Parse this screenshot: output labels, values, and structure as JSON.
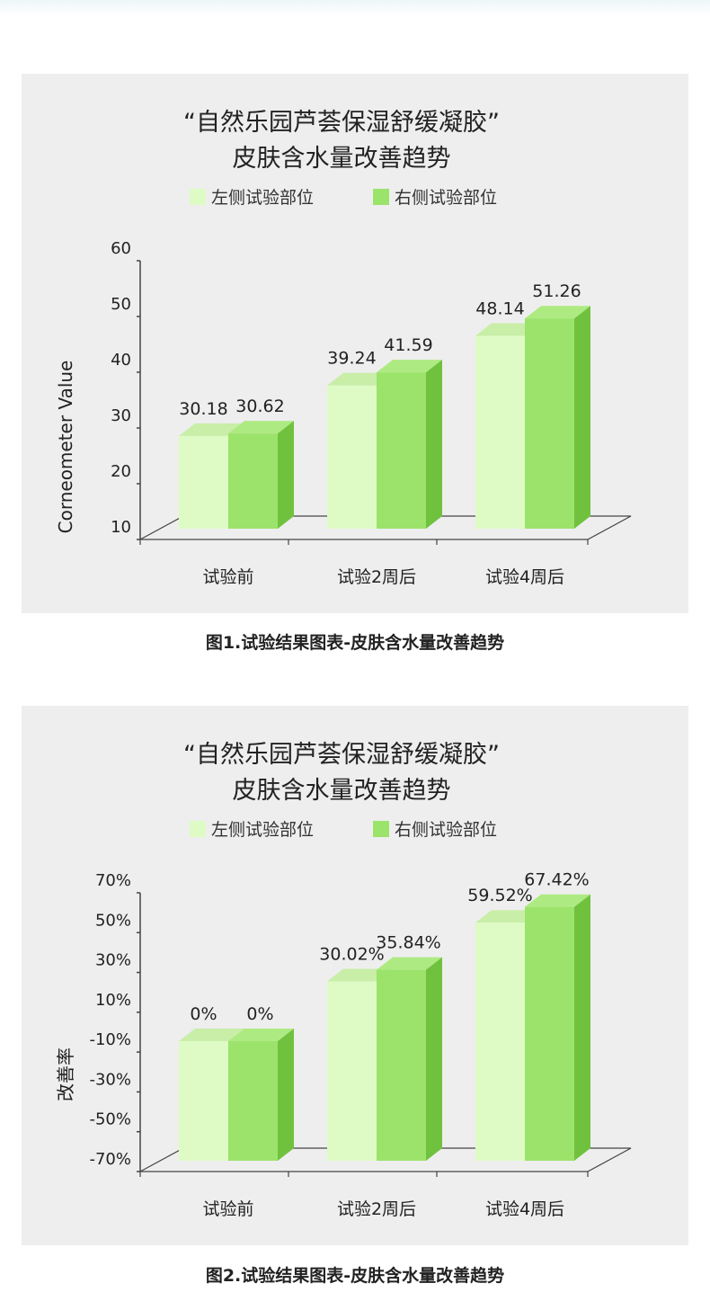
{
  "colors": {
    "left_front": "#defbc6",
    "left_top": "#c8eea8",
    "left_side": "#b8e696",
    "right_front": "#9be36a",
    "right_top": "#aeea82",
    "right_side": "#70c23e",
    "axis": "#444444",
    "panel_bg": "#eeeeee"
  },
  "captions": {
    "chart1": "图1.试验结果图表-皮肤含水量改善趋势",
    "chart2": "图2.试验结果图表-皮肤含水量改善趋势"
  },
  "chart_data": [
    {
      "type": "bar",
      "title": "“自然乐园芦荟保湿舒缓凝胶”",
      "subtitle": "皮肤含水量改善趋势",
      "ylabel": "Corneometer Value",
      "xlabel": "",
      "categories": [
        "试验前",
        "试验2周后",
        "试验4周后"
      ],
      "yticks": [
        "10",
        "20",
        "30",
        "40",
        "50",
        "60"
      ],
      "ylim": [
        10,
        60
      ],
      "series": [
        {
          "name": "左侧试验部位",
          "values": [
            30.18,
            39.24,
            48.14
          ],
          "labels": [
            "30.18",
            "39.24",
            "48.14"
          ]
        },
        {
          "name": "右侧试验部位",
          "values": [
            30.62,
            41.59,
            51.26
          ],
          "labels": [
            "30.62",
            "41.59",
            "51.26"
          ]
        }
      ],
      "legend": "top-center",
      "grid": false,
      "style": "3d"
    },
    {
      "type": "bar",
      "title": "“自然乐园芦荟保湿舒缓凝胶”",
      "subtitle": "皮肤含水量改善趋势",
      "ylabel": "改善率",
      "xlabel": "",
      "categories": [
        "试验前",
        "试验2周后",
        "试验4周后"
      ],
      "yticks": [
        "-70%",
        "-50%",
        "-30%",
        "-10%",
        "10%",
        "30%",
        "50%",
        "70%"
      ],
      "ylim": [
        -70,
        70
      ],
      "series": [
        {
          "name": "左侧试验部位",
          "values": [
            0,
            30.02,
            59.52
          ],
          "labels": [
            "0%",
            "30.02%",
            "59.52%"
          ]
        },
        {
          "name": "右侧试验部位",
          "values": [
            0,
            35.84,
            67.42
          ],
          "labels": [
            "0%",
            "35.84%",
            "67.42%"
          ]
        }
      ],
      "legend": "top-center",
      "grid": false,
      "style": "3d"
    }
  ]
}
